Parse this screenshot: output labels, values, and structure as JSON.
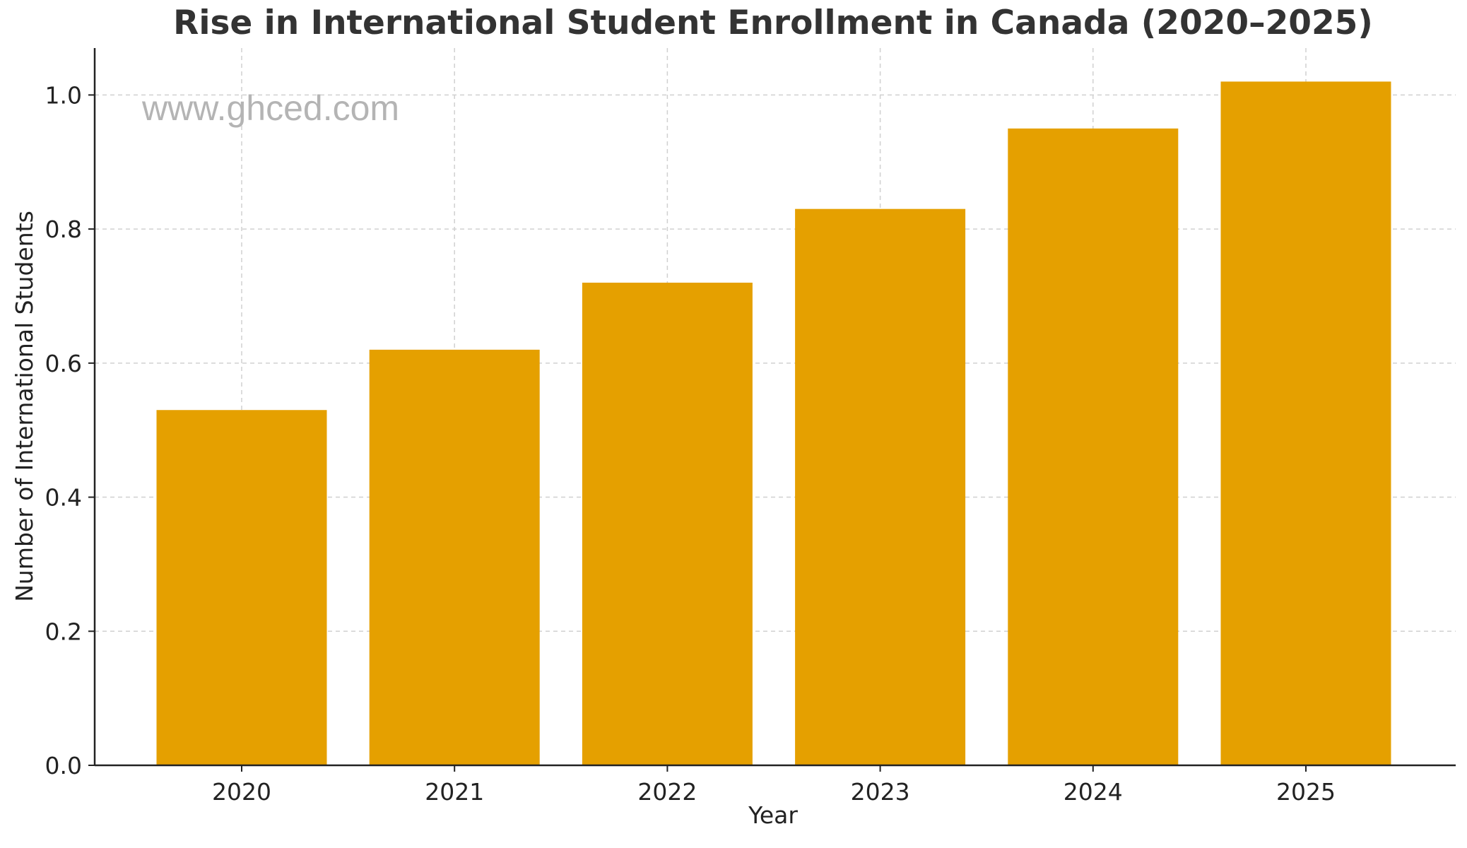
{
  "watermark": "www.ghced.com",
  "chart_data": {
    "type": "bar",
    "title": "Rise in International Student Enrollment in Canada (2020–2025)",
    "xlabel": "Year",
    "ylabel": "Number of International Students",
    "categories": [
      "2020",
      "2021",
      "2022",
      "2023",
      "2024",
      "2025"
    ],
    "values": [
      0.53,
      0.62,
      0.72,
      0.83,
      0.95,
      1.02
    ],
    "ylim": [
      0,
      1.07
    ],
    "yticks": [
      0.0,
      0.2,
      0.4,
      0.6,
      0.8,
      1.0
    ],
    "ytick_labels": [
      "0.0",
      "0.2",
      "0.4",
      "0.6",
      "0.8",
      "1.0"
    ],
    "bar_color": "#e5a000",
    "grid": true,
    "legend": "none"
  }
}
